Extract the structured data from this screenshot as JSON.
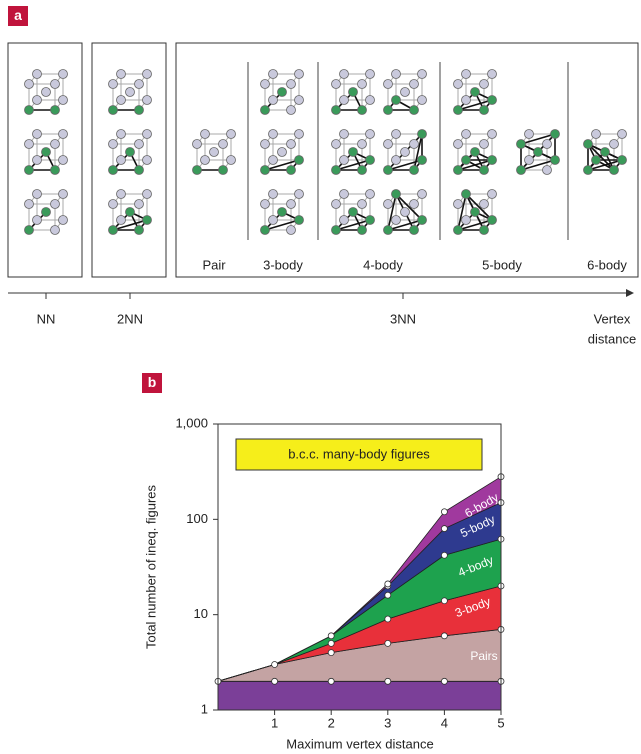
{
  "panel_a": {
    "label": "a",
    "groups": [
      "Pair",
      "3-body",
      "4-body",
      "5-body",
      "6-body"
    ],
    "axis_ticks": [
      "NN",
      "2NN",
      "3NN"
    ],
    "axis_label": [
      "Vertex",
      "distance"
    ]
  },
  "panel_b": {
    "label": "b"
  },
  "chart_data": {
    "type": "stacked_area",
    "title": "b.c.c. many-body figures",
    "x_label": "Maximum vertex distance",
    "y_label": "Total number of ineq. figures",
    "x": [
      0,
      1,
      2,
      3,
      4,
      5
    ],
    "xlim": [
      0,
      5
    ],
    "xticks": [
      1,
      2,
      3,
      4,
      5
    ],
    "ylim": [
      1,
      1000
    ],
    "yscale": "log",
    "yticks": [
      1,
      10,
      100,
      {
        "value": 1000,
        "label": "1,000"
      }
    ],
    "series": [
      {
        "name": null,
        "color": "#7b3f98",
        "values": [
          2,
          2,
          2,
          2,
          2,
          2
        ]
      },
      {
        "name": "Pairs",
        "color": "#c4a3a3",
        "values": [
          0,
          1,
          2,
          3,
          4,
          5
        ]
      },
      {
        "name": "3-body",
        "color": "#e8303a",
        "values": [
          0,
          0,
          1,
          4,
          8,
          13
        ]
      },
      {
        "name": "4-body",
        "color": "#1ea24e",
        "values": [
          0,
          0,
          1,
          7,
          28,
          42
        ]
      },
      {
        "name": "5-body",
        "color": "#2e3a8f",
        "values": [
          0,
          0,
          0,
          4,
          38,
          88
        ]
      },
      {
        "name": "6-body",
        "color": "#a0399e",
        "values": [
          0,
          0,
          0,
          1,
          40,
          130
        ]
      }
    ]
  }
}
